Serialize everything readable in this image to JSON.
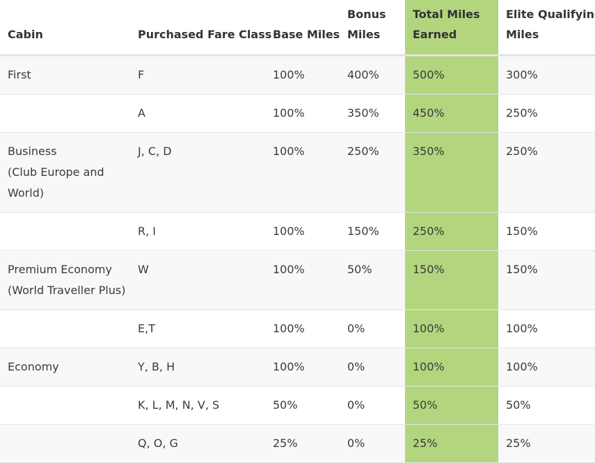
{
  "headers": {
    "cabin": "Cabin",
    "fare_class": "Purchased Fare Class",
    "base_miles": "Base Miles",
    "bonus_miles_1": "Bonus",
    "bonus_miles_2": "Miles",
    "total_miles_1": "Total Miles",
    "total_miles_2": "Earned",
    "elite_miles_1": "Elite Qualifying",
    "elite_miles_2": "Miles"
  },
  "rows": [
    {
      "cabin": "First",
      "cabin_sub": "",
      "fare_class": "F",
      "base": "100%",
      "bonus": "400%",
      "total": "500%",
      "elite": "300%"
    },
    {
      "cabin": "",
      "cabin_sub": "",
      "fare_class": "A",
      "base": "100%",
      "bonus": "350%",
      "total": "450%",
      "elite": "250%"
    },
    {
      "cabin": "Business",
      "cabin_sub": "(Club Europe and World)",
      "fare_class": "J, C, D",
      "base": "100%",
      "bonus": "250%",
      "total": "350%",
      "elite": "250%"
    },
    {
      "cabin": "",
      "cabin_sub": "",
      "fare_class": "R, I",
      "base": "100%",
      "bonus": "150%",
      "total": "250%",
      "elite": "150%"
    },
    {
      "cabin": "Premium Economy",
      "cabin_sub": "(World Traveller Plus)",
      "fare_class": "W",
      "base": "100%",
      "bonus": "50%",
      "total": "150%",
      "elite": "150%"
    },
    {
      "cabin": "",
      "cabin_sub": "",
      "fare_class": "E,T",
      "base": "100%",
      "bonus": "0%",
      "total": "100%",
      "elite": "100%"
    },
    {
      "cabin": "Economy",
      "cabin_sub": "",
      "fare_class": "Y, B, H",
      "base": "100%",
      "bonus": "0%",
      "total": "100%",
      "elite": "100%"
    },
    {
      "cabin": "",
      "cabin_sub": "",
      "fare_class": "K, L, M, N, V, S",
      "base": "50%",
      "bonus": "0%",
      "total": "50%",
      "elite": "50%"
    },
    {
      "cabin": "",
      "cabin_sub": "",
      "fare_class": "Q, O, G",
      "base": "25%",
      "bonus": "0%",
      "total": "25%",
      "elite": "25%"
    }
  ],
  "colors": {
    "highlight": "#b3d57e",
    "row_shade": "#f8f8f8"
  }
}
